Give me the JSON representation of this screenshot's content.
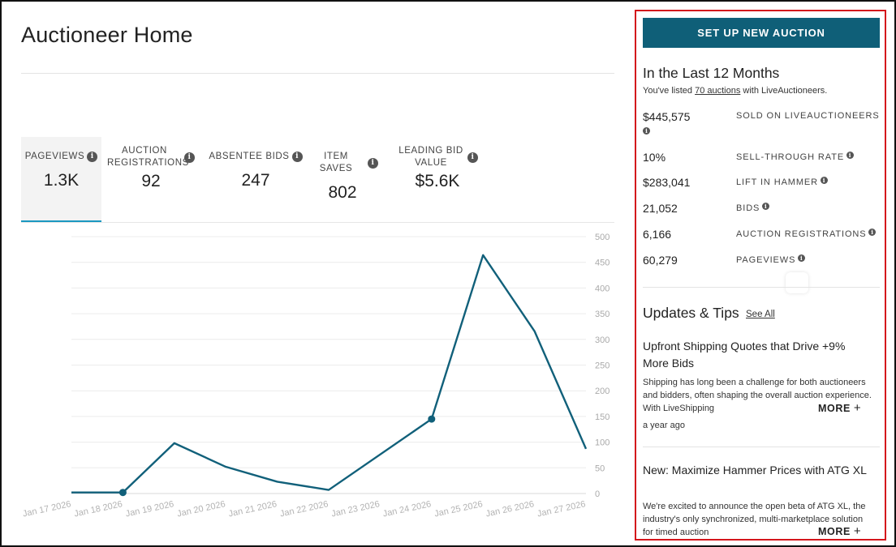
{
  "header": {
    "title": "Auctioneer Home"
  },
  "tabs": [
    {
      "label": "PAGEVIEWS",
      "value": "1.3K",
      "active": true
    },
    {
      "label": "AUCTION REGISTRATIONS",
      "value": "92",
      "active": false
    },
    {
      "label": "ABSENTEE BIDS",
      "value": "247",
      "active": false
    },
    {
      "label": "ITEM SAVES",
      "value": "802",
      "active": false
    },
    {
      "label": "LEADING BID VALUE",
      "value": "$5.6K",
      "active": false
    }
  ],
  "chart_data": {
    "type": "line",
    "x": [
      "Jan 17 2026",
      "Jan 18 2026",
      "Jan 19 2026",
      "Jan 20 2026",
      "Jan 21 2026",
      "Jan 22 2026",
      "Jan 23 2026",
      "Jan 24 2026",
      "Jan 25 2026",
      "Jan 26 2026",
      "Jan 27 2026"
    ],
    "y_ticks": [
      "0",
      "50",
      "100",
      "150",
      "200",
      "250",
      "300",
      "350",
      "400",
      "450",
      "500"
    ],
    "series": [
      {
        "values": [
          2,
          2,
          98,
          52,
          23,
          7,
          null,
          145,
          464,
          316,
          87
        ],
        "markers": [
          false,
          true,
          false,
          false,
          false,
          false,
          false,
          true,
          false,
          false,
          false
        ]
      }
    ],
    "ylim": [
      0,
      500
    ],
    "grid": true,
    "line_color": "#11607a"
  },
  "panel": {
    "new_auction_label": "SET UP NEW AUCTION",
    "stats_heading": "In the Last 12 Months",
    "stats_sub_prefix": "You've listed ",
    "stats_sub_link": "70 auctions",
    "stats_sub_suffix": " with LiveAuctioneers.",
    "stats": [
      {
        "value": "$445,575",
        "label": "SOLD ON LIVEAUCTIONEERS"
      },
      {
        "value": "10%",
        "label": "SELL-THROUGH RATE"
      },
      {
        "value": "$283,041",
        "label": "LIFT IN HAMMER"
      },
      {
        "value": "21,052",
        "label": "BIDS"
      },
      {
        "value": "6,166",
        "label": "AUCTION REGISTRATIONS"
      },
      {
        "value": "60,279",
        "label": "PAGEVIEWS"
      }
    ],
    "updates_heading": "Updates & Tips",
    "see_all": "See All",
    "articles": [
      {
        "title": "Upfront Shipping Quotes that Drive +9% More Bids",
        "body": "Shipping has long been a challenge for both auctioneers and bidders, often shaping the overall auction experience. With LiveShipping",
        "more": "MORE",
        "time": "a year ago"
      },
      {
        "title": "New: Maximize Hammer Prices with ATG XL",
        "body": "We're excited to announce the open beta of ATG XL, the industry's only synchronized, multi-marketplace solution for timed auction",
        "more": "MORE"
      }
    ]
  }
}
